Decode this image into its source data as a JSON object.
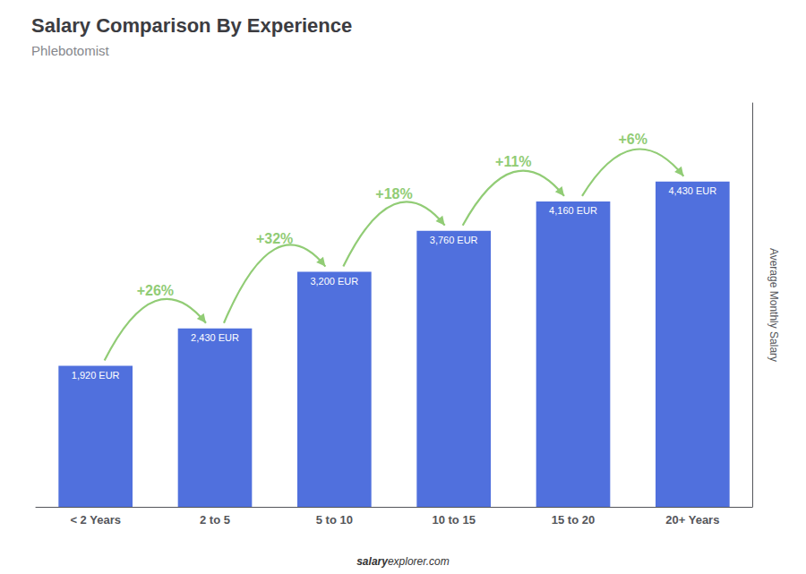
{
  "chart_data": {
    "type": "bar",
    "title": "Salary Comparison By Experience",
    "subtitle": "Phlebotomist",
    "categories": [
      "< 2 Years",
      "2 to 5",
      "5 to 10",
      "10 to 15",
      "15 to 20",
      "20+ Years"
    ],
    "values": [
      1920,
      2430,
      3200,
      3760,
      4160,
      4430
    ],
    "value_labels": [
      "1,920 EUR",
      "2,430 EUR",
      "3,200 EUR",
      "3,760 EUR",
      "4,160 EUR",
      "4,430 EUR"
    ],
    "data_labels": true,
    "annotations": [
      "+26%",
      "+32%",
      "+18%",
      "+11%",
      "+6%"
    ],
    "ylabel": "Average Monthly Salary",
    "footer": [
      "salary",
      "explorer.com"
    ],
    "ylim": [
      0,
      5500
    ],
    "grid": false,
    "tick_labels": "x"
  }
}
